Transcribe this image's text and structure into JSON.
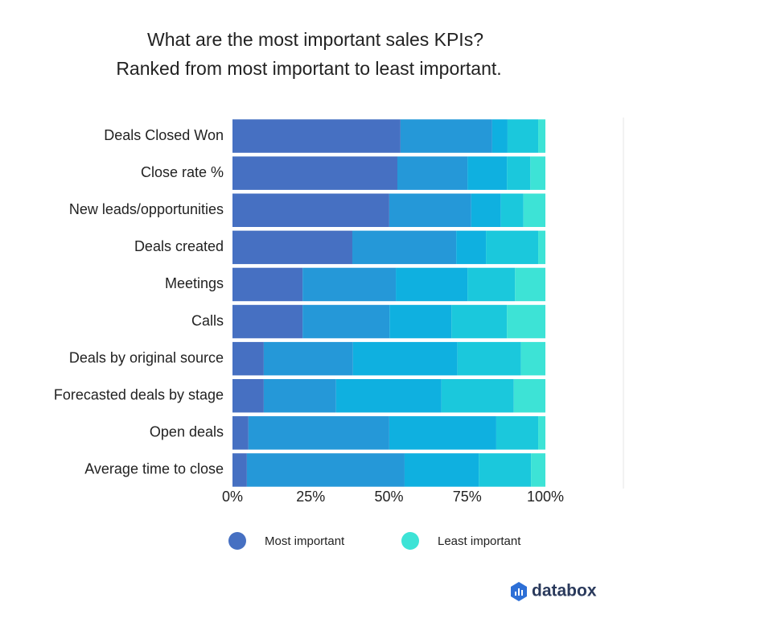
{
  "chart_data": {
    "type": "stacked_bar_horizontal",
    "title": "What are the most important sales KPIs?",
    "subtitle": "Ranked from most important to least important.",
    "categories": [
      "Deals Closed Won",
      "Close rate %",
      "New leads/opportunities",
      "Deals created",
      "Meetings",
      "Calls",
      "Deals by original source",
      "Forecasted deals by stage",
      "Open deals",
      "Average time to close"
    ],
    "series": [
      {
        "name": "Most important",
        "color": "#4670c2",
        "values": [
          53.7,
          52.7,
          50.1,
          38.3,
          22.4,
          22.4,
          10.0,
          10.0,
          5.1,
          4.6
        ]
      },
      {
        "color": "#2598d8",
        "values": [
          29.3,
          22.4,
          26.2,
          33.2,
          29.8,
          27.8,
          28.5,
          23.1,
          45.0,
          50.4
        ]
      },
      {
        "color": "#0fb0e0",
        "values": [
          4.9,
          12.6,
          9.5,
          9.5,
          22.9,
          19.8,
          33.4,
          33.7,
          34.2,
          23.7
        ]
      },
      {
        "color": "#1bc8dc",
        "values": [
          9.8,
          7.5,
          7.2,
          16.7,
          15.2,
          17.7,
          20.3,
          23.1,
          13.4,
          16.7
        ]
      },
      {
        "name": "Least important",
        "color": "#3de3d6",
        "values": [
          2.3,
          4.8,
          7.0,
          2.3,
          9.7,
          12.3,
          7.8,
          10.1,
          2.3,
          4.6
        ]
      }
    ],
    "xlim": [
      0,
      100
    ],
    "xticks": [
      {
        "value": 0,
        "label": "0%"
      },
      {
        "value": 25,
        "label": "25%"
      },
      {
        "value": 50,
        "label": "50%"
      },
      {
        "value": 75,
        "label": "75%"
      },
      {
        "value": 100,
        "label": "100%"
      }
    ],
    "legend": "bottom"
  },
  "brand": "databox"
}
